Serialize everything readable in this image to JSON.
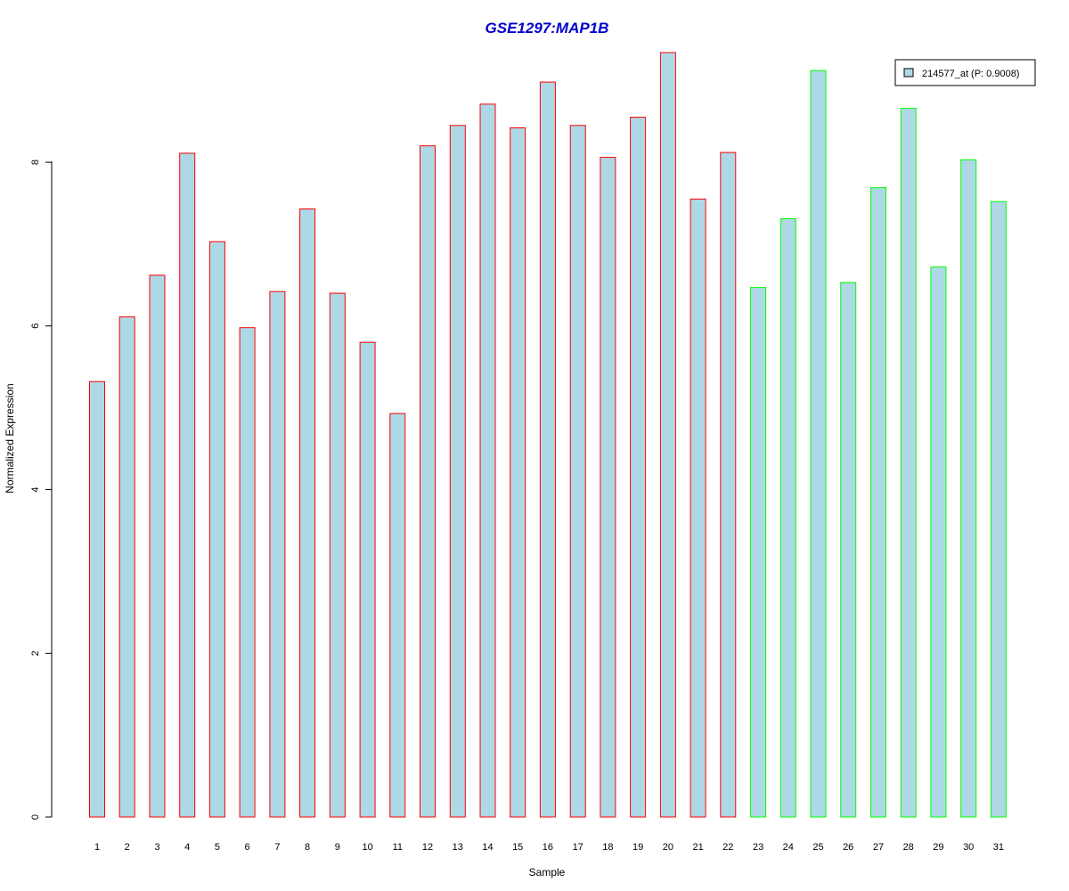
{
  "chart_data": {
    "type": "bar",
    "title": "GSE1297:MAP1B",
    "xlabel": "Sample",
    "ylabel": "Normalized Expression",
    "categories": [
      "1",
      "2",
      "3",
      "4",
      "5",
      "6",
      "7",
      "8",
      "9",
      "10",
      "11",
      "12",
      "13",
      "14",
      "15",
      "16",
      "17",
      "18",
      "19",
      "20",
      "21",
      "22",
      "23",
      "24",
      "25",
      "26",
      "27",
      "28",
      "29",
      "30",
      "31"
    ],
    "series": [
      {
        "name": "214577_at (P: 0.9008)",
        "values": [
          5.32,
          6.11,
          6.62,
          8.11,
          7.03,
          5.98,
          6.42,
          7.43,
          6.4,
          5.8,
          4.93,
          8.2,
          8.45,
          8.71,
          8.42,
          8.98,
          8.45,
          8.06,
          8.55,
          9.34,
          7.55,
          8.12,
          6.47,
          7.31,
          9.12,
          6.53,
          7.69,
          8.66,
          6.72,
          8.03,
          7.52
        ]
      }
    ],
    "group_edge_colors": [
      "#ff0000",
      "#ff0000",
      "#ff0000",
      "#ff0000",
      "#ff0000",
      "#ff0000",
      "#ff0000",
      "#ff0000",
      "#ff0000",
      "#ff0000",
      "#ff0000",
      "#ff0000",
      "#ff0000",
      "#ff0000",
      "#ff0000",
      "#ff0000",
      "#ff0000",
      "#ff0000",
      "#ff0000",
      "#ff0000",
      "#ff0000",
      "#ff0000",
      "#00ff00",
      "#00ff00",
      "#00ff00",
      "#00ff00",
      "#00ff00",
      "#00ff00",
      "#00ff00",
      "#00ff00",
      "#00ff00"
    ],
    "yticks": [
      "0",
      "2",
      "4",
      "6",
      "8"
    ],
    "ylim": [
      0,
      9.34
    ],
    "grid": false,
    "legend_position": "top-right",
    "colors": {
      "bar_fill": "#add8e6",
      "title": "#0000cd",
      "axis": "#000000"
    }
  }
}
